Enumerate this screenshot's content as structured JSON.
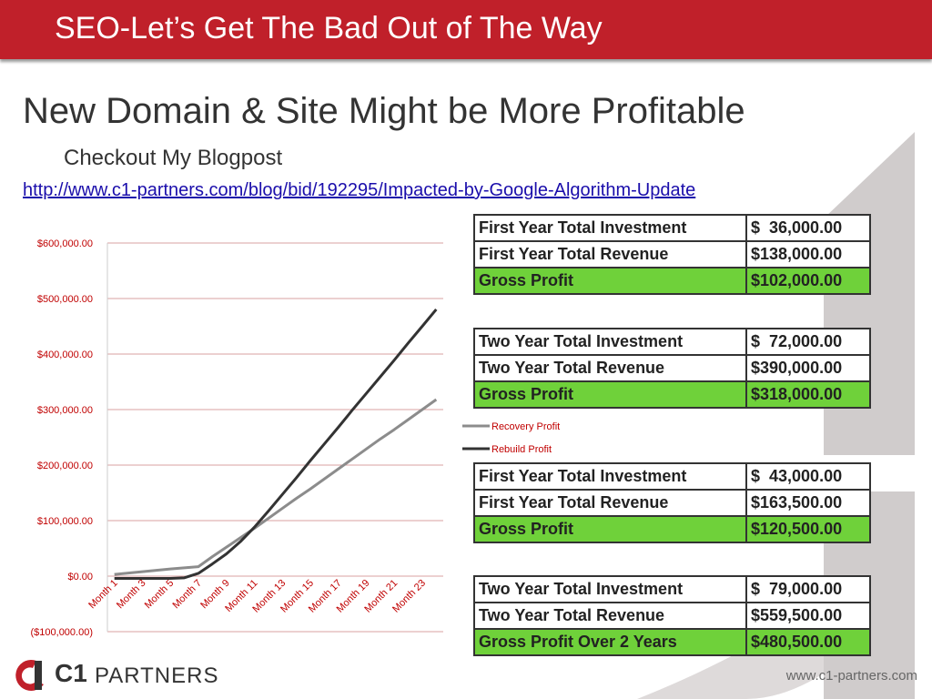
{
  "header": {
    "title": "SEO-Let’s Get The Bad Out of The Way"
  },
  "heading": "New Domain & Site Might be More Profitable",
  "subheading": "Checkout My Blogpost",
  "link": "http://www.c1-partners.com/blog/bid/192295/Impacted-by-Google-Algorithm-Update",
  "chart_data": {
    "type": "line",
    "categories": [
      "Month 1",
      null,
      "Month 3",
      null,
      "Month 5",
      null,
      "Month 7",
      null,
      "Month 9",
      null,
      "Month 11",
      null,
      "Month 13",
      null,
      "Month 15",
      null,
      "Month 17",
      null,
      "Month 19",
      null,
      "Month 21",
      null,
      "Month 23",
      null
    ],
    "series": [
      {
        "name": "Recovery Profit",
        "color": "#8c8c8c",
        "values": [
          3000,
          5500,
          8000,
          10500,
          13000,
          15000,
          17000,
          35000,
          52000,
          69000,
          86000,
          104000,
          122000,
          140000,
          157000,
          175000,
          193000,
          211000,
          229000,
          247000,
          264000,
          282000,
          300000,
          318000
        ]
      },
      {
        "name": "Rebuild Profit",
        "color": "#333333",
        "values": [
          -4000,
          -4000,
          -4000,
          -4000,
          -4000,
          -3000,
          5000,
          22000,
          40000,
          62000,
          88000,
          117000,
          147000,
          177000,
          208000,
          238000,
          268000,
          299000,
          329000,
          359000,
          389000,
          420000,
          450000,
          480500
        ]
      }
    ],
    "ylim": [
      -100000,
      600000
    ],
    "yticks": [
      {
        "value": -100000,
        "label": "($100,000.00)"
      },
      {
        "value": 0,
        "label": "$0.00"
      },
      {
        "value": 100000,
        "label": "$100,000.00"
      },
      {
        "value": 200000,
        "label": "$200,000.00"
      },
      {
        "value": 300000,
        "label": "$300,000.00"
      },
      {
        "value": 400000,
        "label": "$400,000.00"
      },
      {
        "value": 500000,
        "label": "$500,000.00"
      },
      {
        "value": 600000,
        "label": "$600,000.00"
      }
    ],
    "grid": true,
    "legend": "right"
  },
  "tables": [
    {
      "rows": [
        [
          "First Year Total Investment",
          "$  36,000.00"
        ],
        [
          "First Year Total Revenue",
          "$138,000.00"
        ],
        [
          "Gross Profit",
          "$102,000.00"
        ]
      ]
    },
    {
      "rows": [
        [
          "Two Year Total Investment",
          "$  72,000.00"
        ],
        [
          "Two Year Total Revenue",
          "$390,000.00"
        ],
        [
          "Gross Profit",
          "$318,000.00"
        ]
      ]
    },
    {
      "rows": [
        [
          "First Year Total Investment",
          "$  43,000.00"
        ],
        [
          "First Year Total Revenue",
          "$163,500.00"
        ],
        [
          "Gross Profit",
          "$120,500.00"
        ]
      ]
    },
    {
      "rows": [
        [
          "Two Year Total Investment",
          "$  79,000.00"
        ],
        [
          "Two Year Total Revenue",
          "$559,500.00"
        ],
        [
          "Gross Profit Over 2 Years",
          "$480,500.00"
        ]
      ]
    }
  ],
  "footer": {
    "logo": "C1",
    "brand": "PARTNERS",
    "url": "www.c1-partners.com"
  }
}
